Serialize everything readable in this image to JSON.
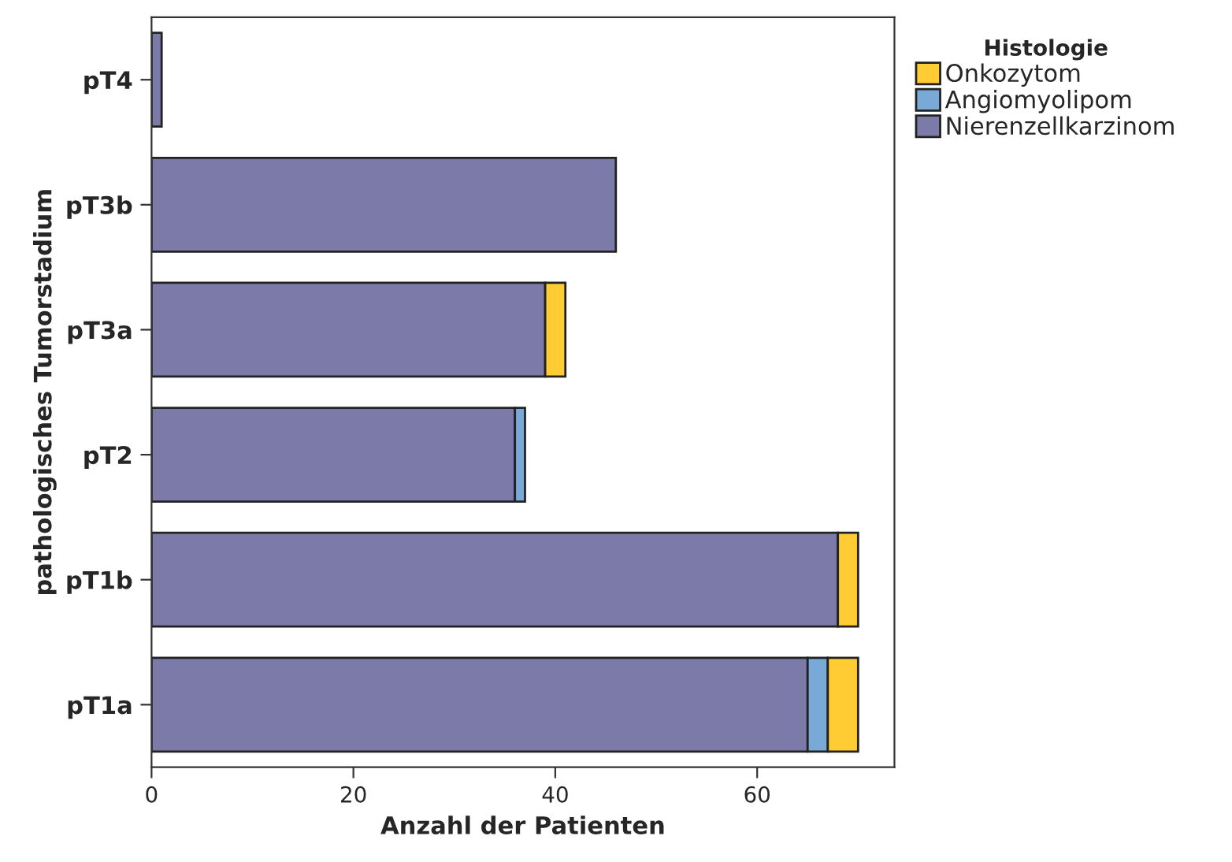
{
  "chart_data": {
    "type": "bar",
    "orientation": "horizontal",
    "stacked": true,
    "xlabel": "Anzahl der Patienten",
    "ylabel": "pathologisches Tumorstadium",
    "legend_title": "Histologie",
    "legend": "right",
    "grid": false,
    "categories": [
      "pT4",
      "pT3b",
      "pT3a",
      "pT2",
      "pT1b",
      "pT1a"
    ],
    "series": [
      {
        "name": "Nierenzellkarzinom",
        "color": "#7b7aa8",
        "values": [
          1,
          46,
          39,
          36,
          68,
          65
        ]
      },
      {
        "name": "Angiomyolipom",
        "color": "#79a9d6",
        "values": [
          0,
          0,
          0,
          1,
          0,
          2
        ]
      },
      {
        "name": "Onkozytom",
        "color": "#ffcc33",
        "values": [
          0,
          0,
          2,
          0,
          2,
          3
        ]
      }
    ],
    "xlim": [
      0,
      73.6
    ],
    "xticks": [
      0,
      20,
      40,
      60
    ]
  }
}
